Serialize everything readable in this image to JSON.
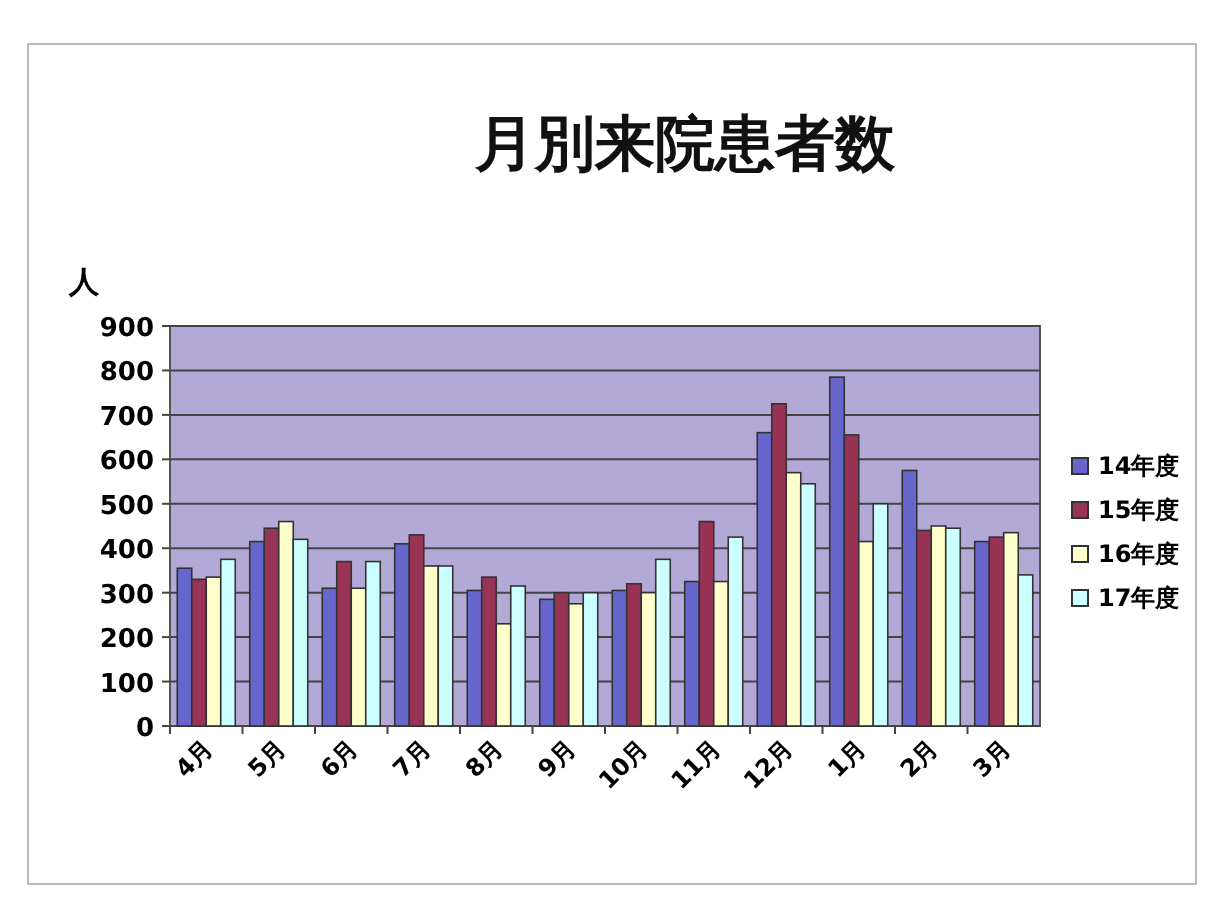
{
  "chart_data": {
    "type": "bar",
    "title": "月別来院患者数",
    "ylabel": "人",
    "categories": [
      "4月",
      "5月",
      "6月",
      "7月",
      "8月",
      "9月",
      "10月",
      "11月",
      "12月",
      "1月",
      "2月",
      "3月"
    ],
    "series": [
      {
        "name": "14年度",
        "color": "#6666cc",
        "values": [
          355,
          415,
          310,
          410,
          305,
          285,
          305,
          325,
          660,
          785,
          575,
          415
        ]
      },
      {
        "name": "15年度",
        "color": "#993355",
        "values": [
          330,
          445,
          370,
          430,
          335,
          300,
          320,
          460,
          725,
          655,
          440,
          425
        ]
      },
      {
        "name": "16年度",
        "color": "#ffffcc",
        "values": [
          335,
          460,
          310,
          360,
          230,
          275,
          300,
          325,
          570,
          415,
          450,
          435
        ]
      },
      {
        "name": "17年度",
        "color": "#ccffff",
        "values": [
          375,
          420,
          370,
          360,
          315,
          300,
          375,
          425,
          545,
          500,
          445,
          340
        ]
      }
    ],
    "ylim": [
      0,
      900
    ],
    "yticks": [
      0,
      100,
      200,
      300,
      400,
      500,
      600,
      700,
      800,
      900
    ],
    "grid": "y",
    "legend": "right"
  }
}
